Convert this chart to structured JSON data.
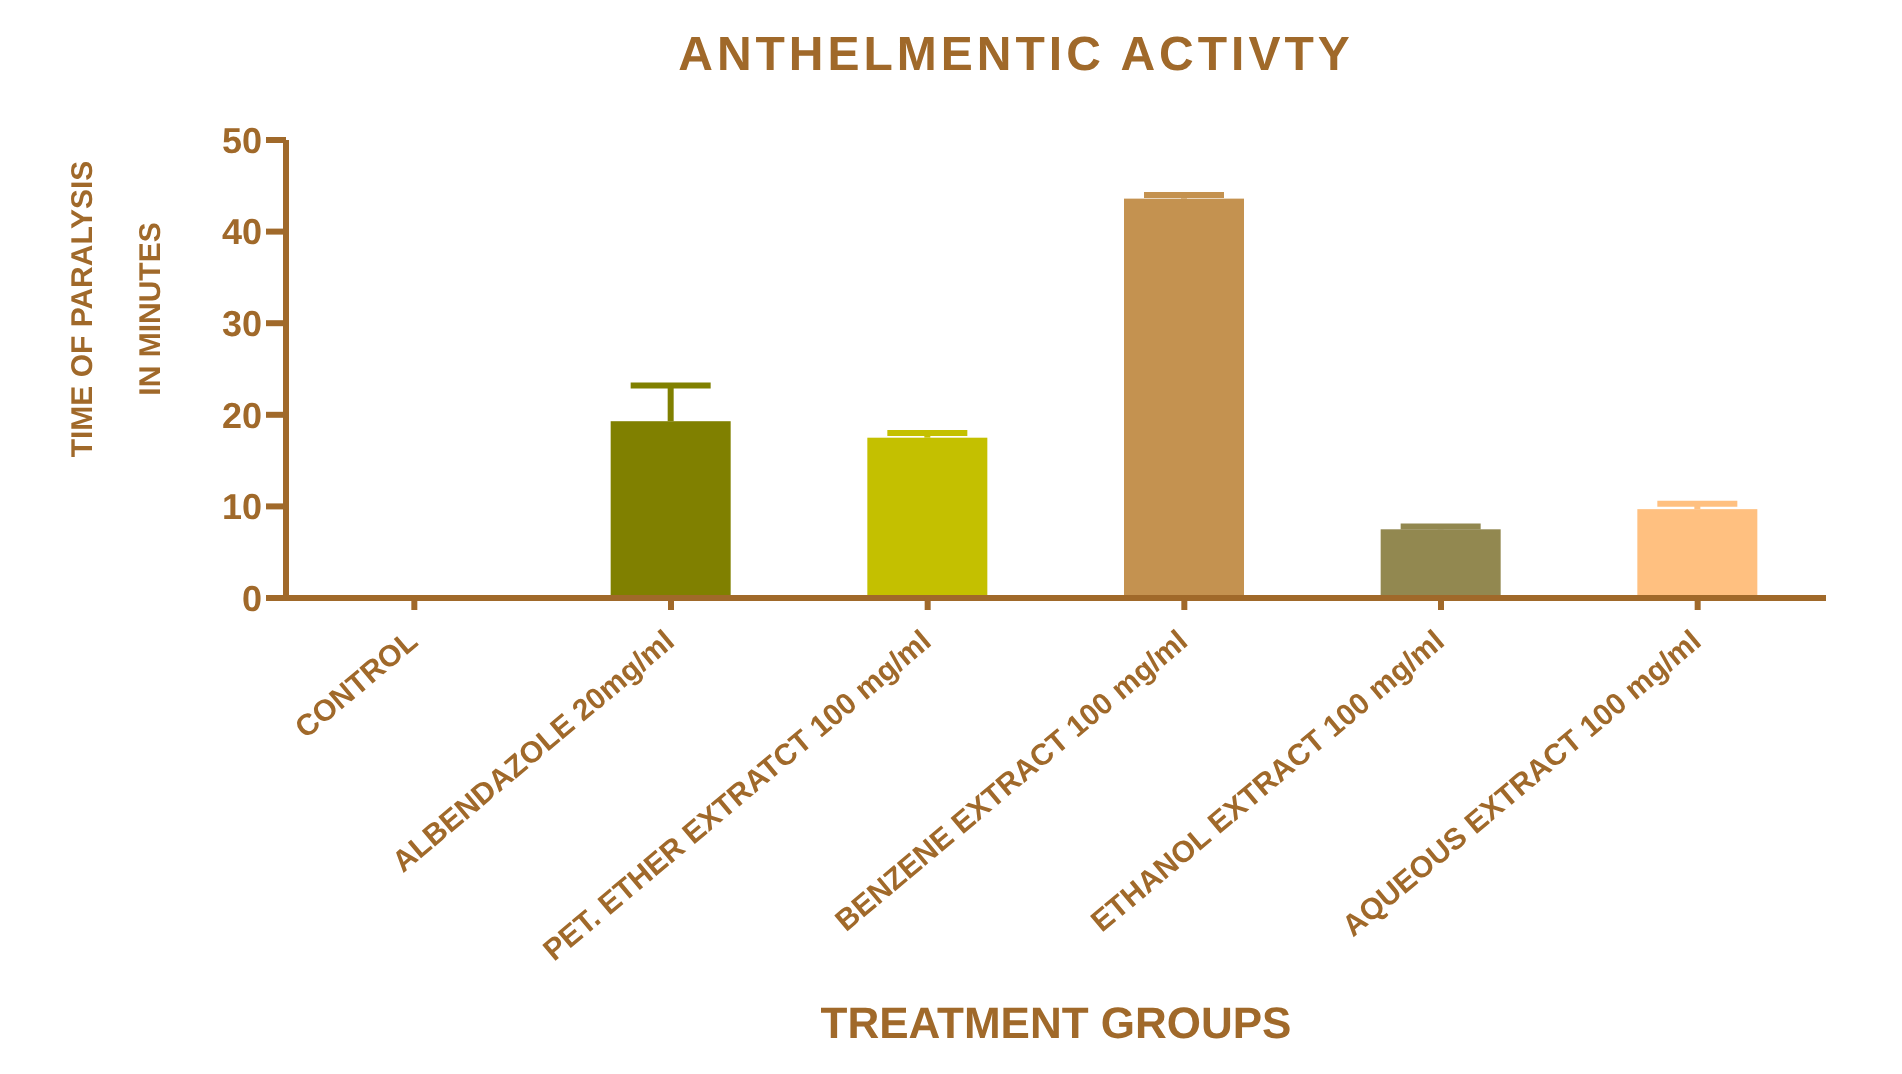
{
  "chart_data": {
    "type": "bar",
    "title": "ANTHELMENTIC ACTIVTY",
    "xlabel": "TREATMENT GROUPS",
    "ylabel": "TIME OF PARALYSIS\nIN MINUTES",
    "categories": [
      "CONTROL",
      "ALBENDAZOLE 20mg/ml",
      "PET. ETHER EXTRATCT 100 mg/ml",
      "BENZENE EXTRACT 100 mg/ml",
      "ETHANOL EXTRACT 100 mg/ml",
      "AQUEOUS EXTRACT 100 mg/ml"
    ],
    "values": [
      0,
      19.3,
      17.5,
      43.6,
      7.5,
      9.7
    ],
    "errors": [
      null,
      [
        19.3,
        23.2
      ],
      [
        17.5,
        18.0
      ],
      [
        43.6,
        44.0
      ],
      [
        7.5,
        7.8
      ],
      [
        9.7,
        10.3
      ]
    ],
    "colors": [
      "#808000",
      "#808000",
      "#c4c000",
      "#c49250",
      "#928850",
      "#ffc080"
    ],
    "ylim": [
      0,
      50
    ],
    "yticks": [
      0,
      10,
      20,
      30,
      40,
      50
    ],
    "grid": false,
    "legend": false
  }
}
